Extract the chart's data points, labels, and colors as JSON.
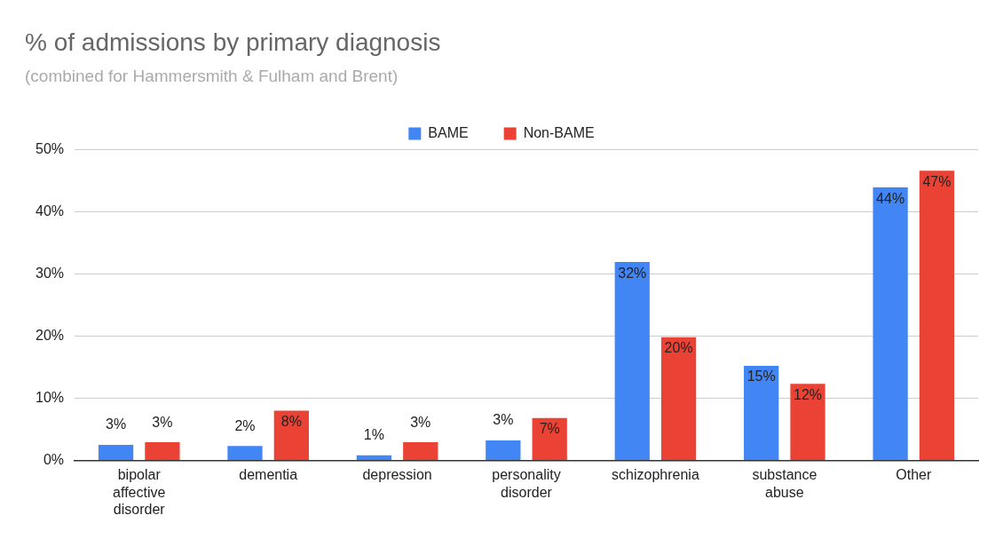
{
  "chart_data": {
    "type": "bar",
    "title": "% of admissions by primary diagnosis",
    "subtitle": "(combined for Hammersmith & Fulham and Brent)",
    "categories": [
      "bipolar affective disorder",
      "dementia",
      "depression",
      "personality disorder",
      "schizophrenia",
      "substance abuse",
      "Other"
    ],
    "series": [
      {
        "name": "BAME",
        "color": "#4285f4",
        "values": [
          2.5,
          2.3,
          0.8,
          3.2,
          31.9,
          15.2,
          43.9
        ],
        "value_labels": [
          "3%",
          "2%",
          "1%",
          "3%",
          "32%",
          "15%",
          "44%"
        ]
      },
      {
        "name": "Non-BAME",
        "color": "#ea4335",
        "values": [
          2.9,
          8,
          2.9,
          6.8,
          19.8,
          12.3,
          46.6
        ],
        "value_labels": [
          "3%",
          "8%",
          "3%",
          "7%",
          "20%",
          "12%",
          "47%"
        ]
      }
    ],
    "ylim": [
      0,
      50
    ],
    "yticks": [
      {
        "value": 0,
        "label": "0%"
      },
      {
        "value": 10,
        "label": "10%"
      },
      {
        "value": 20,
        "label": "20%"
      },
      {
        "value": 30,
        "label": "30%"
      },
      {
        "value": 40,
        "label": "40%"
      },
      {
        "value": 50,
        "label": "50%"
      }
    ],
    "grid": "y",
    "legend": "top"
  }
}
